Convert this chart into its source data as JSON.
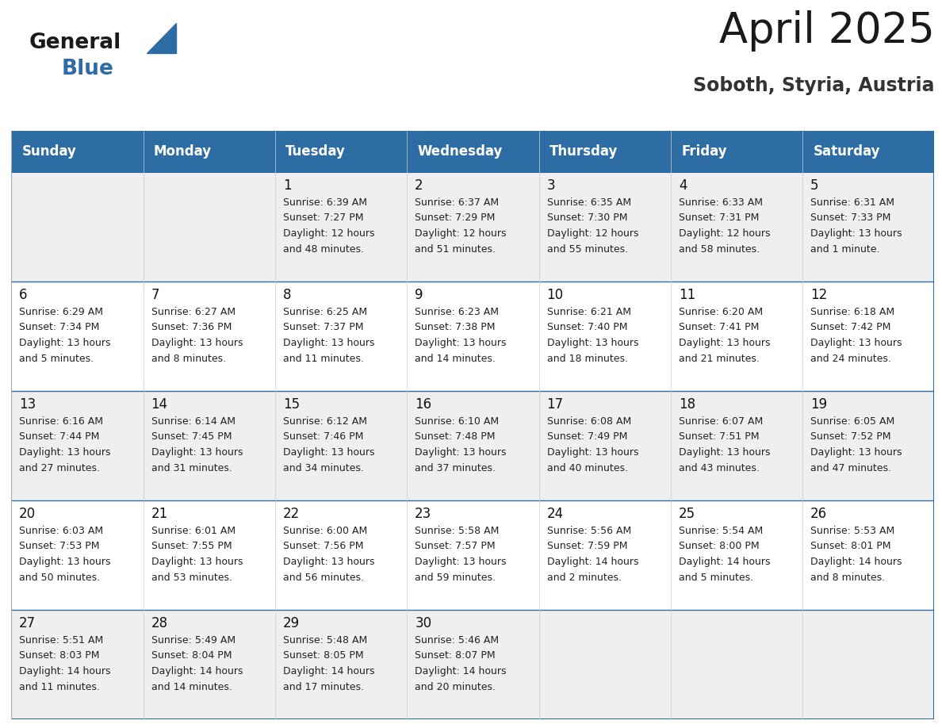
{
  "title": "April 2025",
  "subtitle": "Soboth, Styria, Austria",
  "header_bg": "#2E6DA4",
  "header_text_color": "#FFFFFF",
  "cell_bg_row0": "#EFEFEF",
  "cell_bg_row1": "#FFFFFF",
  "cell_bg_row2": "#EFEFEF",
  "cell_bg_row3": "#FFFFFF",
  "cell_bg_row4": "#EFEFEF",
  "border_color": "#2E6DA4",
  "grid_line_color": "#CCCCCC",
  "day_headers": [
    "Sunday",
    "Monday",
    "Tuesday",
    "Wednesday",
    "Thursday",
    "Friday",
    "Saturday"
  ],
  "days": [
    {
      "date": 1,
      "col": 2,
      "row": 0,
      "sunrise": "6:39 AM",
      "sunset": "7:27 PM",
      "daylight": "12 hours and 48 minutes."
    },
    {
      "date": 2,
      "col": 3,
      "row": 0,
      "sunrise": "6:37 AM",
      "sunset": "7:29 PM",
      "daylight": "12 hours and 51 minutes."
    },
    {
      "date": 3,
      "col": 4,
      "row": 0,
      "sunrise": "6:35 AM",
      "sunset": "7:30 PM",
      "daylight": "12 hours and 55 minutes."
    },
    {
      "date": 4,
      "col": 5,
      "row": 0,
      "sunrise": "6:33 AM",
      "sunset": "7:31 PM",
      "daylight": "12 hours and 58 minutes."
    },
    {
      "date": 5,
      "col": 6,
      "row": 0,
      "sunrise": "6:31 AM",
      "sunset": "7:33 PM",
      "daylight": "13 hours and 1 minute."
    },
    {
      "date": 6,
      "col": 0,
      "row": 1,
      "sunrise": "6:29 AM",
      "sunset": "7:34 PM",
      "daylight": "13 hours and 5 minutes."
    },
    {
      "date": 7,
      "col": 1,
      "row": 1,
      "sunrise": "6:27 AM",
      "sunset": "7:36 PM",
      "daylight": "13 hours and 8 minutes."
    },
    {
      "date": 8,
      "col": 2,
      "row": 1,
      "sunrise": "6:25 AM",
      "sunset": "7:37 PM",
      "daylight": "13 hours and 11 minutes."
    },
    {
      "date": 9,
      "col": 3,
      "row": 1,
      "sunrise": "6:23 AM",
      "sunset": "7:38 PM",
      "daylight": "13 hours and 14 minutes."
    },
    {
      "date": 10,
      "col": 4,
      "row": 1,
      "sunrise": "6:21 AM",
      "sunset": "7:40 PM",
      "daylight": "13 hours and 18 minutes."
    },
    {
      "date": 11,
      "col": 5,
      "row": 1,
      "sunrise": "6:20 AM",
      "sunset": "7:41 PM",
      "daylight": "13 hours and 21 minutes."
    },
    {
      "date": 12,
      "col": 6,
      "row": 1,
      "sunrise": "6:18 AM",
      "sunset": "7:42 PM",
      "daylight": "13 hours and 24 minutes."
    },
    {
      "date": 13,
      "col": 0,
      "row": 2,
      "sunrise": "6:16 AM",
      "sunset": "7:44 PM",
      "daylight": "13 hours and 27 minutes."
    },
    {
      "date": 14,
      "col": 1,
      "row": 2,
      "sunrise": "6:14 AM",
      "sunset": "7:45 PM",
      "daylight": "13 hours and 31 minutes."
    },
    {
      "date": 15,
      "col": 2,
      "row": 2,
      "sunrise": "6:12 AM",
      "sunset": "7:46 PM",
      "daylight": "13 hours and 34 minutes."
    },
    {
      "date": 16,
      "col": 3,
      "row": 2,
      "sunrise": "6:10 AM",
      "sunset": "7:48 PM",
      "daylight": "13 hours and 37 minutes."
    },
    {
      "date": 17,
      "col": 4,
      "row": 2,
      "sunrise": "6:08 AM",
      "sunset": "7:49 PM",
      "daylight": "13 hours and 40 minutes."
    },
    {
      "date": 18,
      "col": 5,
      "row": 2,
      "sunrise": "6:07 AM",
      "sunset": "7:51 PM",
      "daylight": "13 hours and 43 minutes."
    },
    {
      "date": 19,
      "col": 6,
      "row": 2,
      "sunrise": "6:05 AM",
      "sunset": "7:52 PM",
      "daylight": "13 hours and 47 minutes."
    },
    {
      "date": 20,
      "col": 0,
      "row": 3,
      "sunrise": "6:03 AM",
      "sunset": "7:53 PM",
      "daylight": "13 hours and 50 minutes."
    },
    {
      "date": 21,
      "col": 1,
      "row": 3,
      "sunrise": "6:01 AM",
      "sunset": "7:55 PM",
      "daylight": "13 hours and 53 minutes."
    },
    {
      "date": 22,
      "col": 2,
      "row": 3,
      "sunrise": "6:00 AM",
      "sunset": "7:56 PM",
      "daylight": "13 hours and 56 minutes."
    },
    {
      "date": 23,
      "col": 3,
      "row": 3,
      "sunrise": "5:58 AM",
      "sunset": "7:57 PM",
      "daylight": "13 hours and 59 minutes."
    },
    {
      "date": 24,
      "col": 4,
      "row": 3,
      "sunrise": "5:56 AM",
      "sunset": "7:59 PM",
      "daylight": "14 hours and 2 minutes."
    },
    {
      "date": 25,
      "col": 5,
      "row": 3,
      "sunrise": "5:54 AM",
      "sunset": "8:00 PM",
      "daylight": "14 hours and 5 minutes."
    },
    {
      "date": 26,
      "col": 6,
      "row": 3,
      "sunrise": "5:53 AM",
      "sunset": "8:01 PM",
      "daylight": "14 hours and 8 minutes."
    },
    {
      "date": 27,
      "col": 0,
      "row": 4,
      "sunrise": "5:51 AM",
      "sunset": "8:03 PM",
      "daylight": "14 hours and 11 minutes."
    },
    {
      "date": 28,
      "col": 1,
      "row": 4,
      "sunrise": "5:49 AM",
      "sunset": "8:04 PM",
      "daylight": "14 hours and 14 minutes."
    },
    {
      "date": 29,
      "col": 2,
      "row": 4,
      "sunrise": "5:48 AM",
      "sunset": "8:05 PM",
      "daylight": "14 hours and 17 minutes."
    },
    {
      "date": 30,
      "col": 3,
      "row": 4,
      "sunrise": "5:46 AM",
      "sunset": "8:07 PM",
      "daylight": "14 hours and 20 minutes."
    }
  ],
  "num_rows": 5,
  "num_cols": 7,
  "title_fontsize": 38,
  "subtitle_fontsize": 17,
  "header_fontsize": 12,
  "date_fontsize": 12,
  "cell_fontsize": 9
}
